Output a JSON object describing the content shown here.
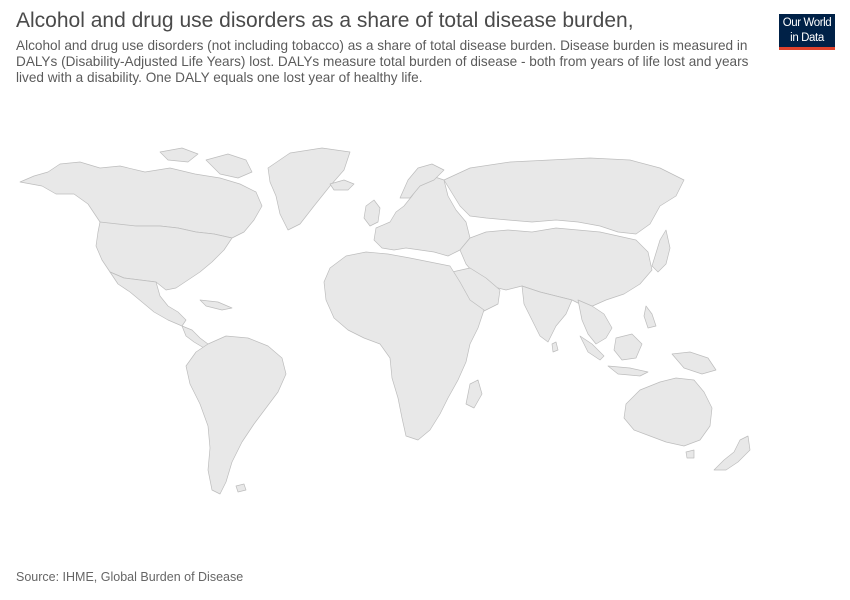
{
  "header": {
    "title": "Alcohol and drug use disorders as a share of total disease burden,",
    "subtitle": "Alcohol and drug use disorders (not including tobacco) as a share of total disease burden. Disease burden is measured in DALYs (Disability-Adjusted Life Years) lost. DALYs measure total burden of disease - both from years of life lost and years lived with a disability. One DALY equals one lost year of healthy life."
  },
  "logo": {
    "line1": "Our World",
    "line2": "in Data",
    "background": "#002147",
    "accent": "#e0422c"
  },
  "map": {
    "land_color": "#e8e8e8",
    "border_color": "#bdbdbd"
  },
  "footer": {
    "source": "Source: IHME, Global Burden of Disease"
  }
}
